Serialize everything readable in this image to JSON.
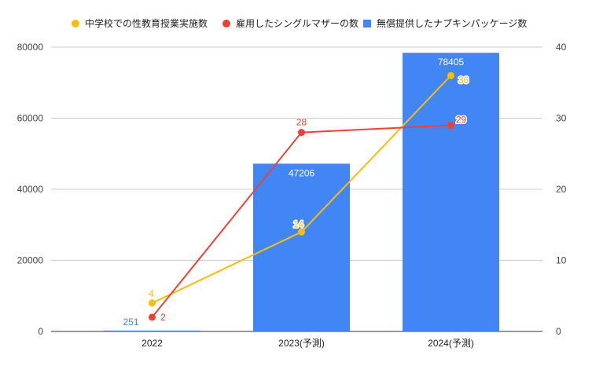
{
  "chart_data": {
    "type": "bar",
    "categories": [
      "2022",
      "2023(予測)",
      "2024(予測)"
    ],
    "series": [
      {
        "name": "中学校での性教育授業実施数",
        "type": "line",
        "axis": "right",
        "color": "#fbbc04",
        "marker": "circle",
        "values": [
          4,
          14,
          36
        ]
      },
      {
        "name": "雇用したシングルマザーの数",
        "type": "line",
        "axis": "right",
        "color": "#ea4335",
        "marker": "circle",
        "values": [
          2,
          28,
          29
        ]
      },
      {
        "name": "無償提供したナプキンパッケージ数",
        "type": "bar",
        "axis": "left",
        "color": "#4285f4",
        "marker": "square",
        "values": [
          251,
          47206,
          78405
        ]
      }
    ],
    "y_left": {
      "min": 0,
      "max": 80000,
      "ticks": [
        0,
        20000,
        40000,
        60000,
        80000
      ]
    },
    "y_right": {
      "min": 0,
      "max": 40,
      "ticks": [
        0,
        10,
        20,
        30,
        40
      ]
    },
    "data_labels": true,
    "grid": true,
    "legend_position": "top"
  }
}
